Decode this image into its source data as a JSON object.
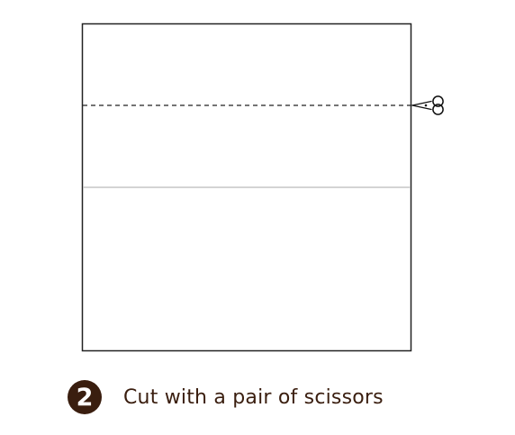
{
  "step": {
    "number": "2",
    "instruction": "Cut with a pair of scissors"
  },
  "colors": {
    "outline": "#222222",
    "fold_line": "#bbbbbb",
    "cut_line": "#222222",
    "badge": "#3a1e0f",
    "text": "#3a1e0f"
  },
  "icons": [
    "scissors-icon"
  ]
}
